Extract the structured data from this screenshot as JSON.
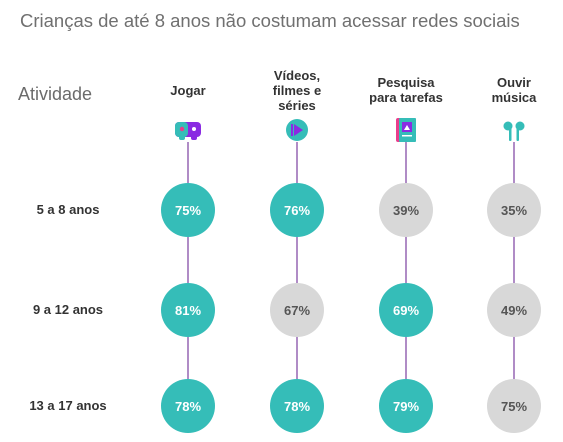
{
  "title": "Crianças de até 8 anos não costumam acessar redes sociais",
  "row_header": "Atividade",
  "colors": {
    "highlight": "#35bdb8",
    "muted": "#d8d8d8",
    "line": "#7b3fa0",
    "text_on_highlight": "#ffffff",
    "text_on_muted": "#555555"
  },
  "chart_data": {
    "type": "table",
    "columns": [
      {
        "label": "Jogar",
        "icon": "gamepad-icon"
      },
      {
        "label": "Vídeos,\nfilmes e\nséries",
        "icon": "play-video-icon"
      },
      {
        "label": "Pesquisa\npara tarefas",
        "icon": "book-icon"
      },
      {
        "label": "Ouvir\nmúsica",
        "icon": "earbuds-icon"
      }
    ],
    "rows": [
      {
        "label": "5 a 8 anos",
        "values": [
          "75%",
          "76%",
          "39%",
          "35%"
        ],
        "highlight": [
          true,
          true,
          false,
          false
        ]
      },
      {
        "label": "9 a 12 anos",
        "values": [
          "81%",
          "67%",
          "69%",
          "49%"
        ],
        "highlight": [
          true,
          false,
          true,
          false
        ]
      },
      {
        "label": "13 a 17 anos",
        "values": [
          "78%",
          "78%",
          "79%",
          "75%"
        ],
        "highlight": [
          true,
          true,
          true,
          false
        ]
      }
    ]
  }
}
